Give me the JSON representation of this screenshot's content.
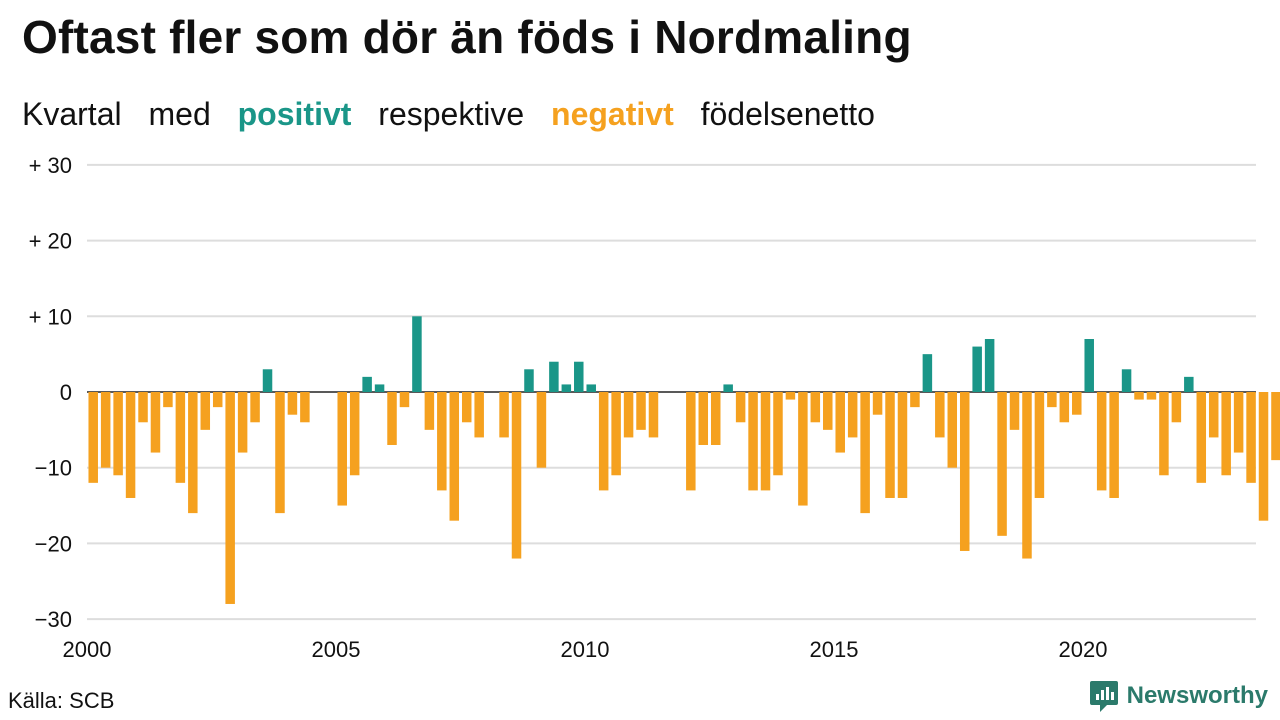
{
  "title": "Oftast fler som dör än föds i Nordmaling",
  "subtitle": {
    "part1": "Kvartal",
    "part2": "med",
    "positive": "positivt",
    "part3": "respektive",
    "negative": "negativt",
    "part4": "födelsenetto"
  },
  "source": "Källa: SCB",
  "brand": "Newsworthy",
  "colors": {
    "positive": "#1a9688",
    "negative": "#f5a11f",
    "grid": "#dddddd",
    "brand": "#2b7a6b"
  },
  "chart_data": {
    "type": "bar",
    "x_start": "2000 Q1",
    "y_ticks": [
      {
        "value": 30,
        "label": "+ 30"
      },
      {
        "value": 20,
        "label": "+ 20"
      },
      {
        "value": 10,
        "label": "+ 10"
      },
      {
        "value": 0,
        "label": "0"
      },
      {
        "value": -10,
        "label": "−10"
      },
      {
        "value": -20,
        "label": "−20"
      },
      {
        "value": -30,
        "label": "−30"
      }
    ],
    "x_ticks": [
      "2000",
      "2005",
      "2010",
      "2015",
      "2020"
    ],
    "ylim": [
      -30,
      30
    ],
    "grid": true,
    "values": [
      -12,
      -10,
      -11,
      -14,
      -4,
      -8,
      -2,
      -12,
      -16,
      -5,
      -2,
      -28,
      -8,
      -4,
      3,
      -16,
      -3,
      -4,
      0,
      0,
      -15,
      -11,
      2,
      1,
      -7,
      -2,
      10,
      -5,
      -13,
      -17,
      -4,
      -6,
      0,
      -6,
      -22,
      3,
      -10,
      4,
      1,
      4,
      1,
      -13,
      -11,
      -6,
      -5,
      -6,
      0,
      0,
      -13,
      -7,
      -7,
      1,
      -4,
      -13,
      -13,
      -11,
      -1,
      -15,
      -4,
      -5,
      -8,
      -6,
      -16,
      -3,
      -14,
      -14,
      -2,
      5,
      -6,
      -10,
      -21,
      6,
      7,
      -19,
      -5,
      -22,
      -14,
      -2,
      -4,
      -3,
      7,
      -13,
      -14,
      3,
      -1,
      -1,
      -11,
      -4,
      2,
      -12,
      -6,
      -11,
      -8,
      -12,
      -17,
      -9
    ]
  }
}
